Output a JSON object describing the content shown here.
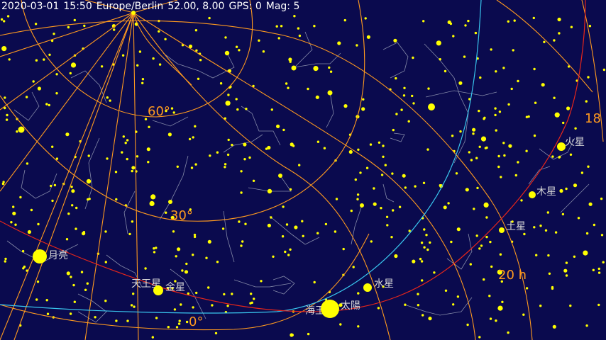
{
  "status": {
    "date": "2020-03-01",
    "time": "15:50",
    "timezone": "Europe/Berlin",
    "location": "52.00, 8.00",
    "gps": "GPS: 0",
    "mag": "Mag: 5"
  },
  "grid_labels": {
    "dec60": "60°",
    "dec30": "30°",
    "dec0": "0°",
    "ra20": "20 h",
    "ra18": "18"
  },
  "bodies": [
    {
      "key": "moon",
      "label": "月亮"
    },
    {
      "key": "uranus",
      "label": "天王星"
    },
    {
      "key": "venus",
      "label": "金星"
    },
    {
      "key": "neptune",
      "label": "海王星"
    },
    {
      "key": "sun",
      "label": "太陽"
    },
    {
      "key": "mercury",
      "label": "水星"
    },
    {
      "key": "saturn",
      "label": "土星"
    },
    {
      "key": "jupiter",
      "label": "木星"
    },
    {
      "key": "mars",
      "label": "火星"
    }
  ],
  "colors": {
    "sky": "#0a0a4e",
    "grid": "#ff9a1f",
    "ecliptic": "#e8261a",
    "equator": "#39c6ee",
    "star": "#ffff00",
    "constellation": "#9aa0b8",
    "label": "#d8d8d8"
  }
}
